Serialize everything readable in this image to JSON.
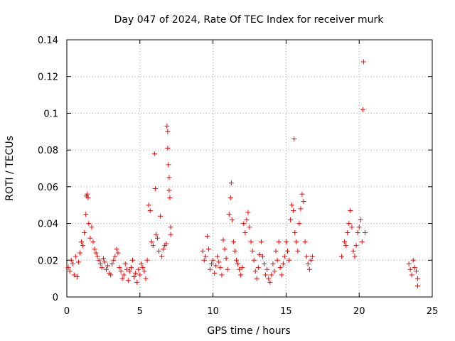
{
  "chart_data": {
    "type": "scatter",
    "title": "Day 047 of 2024, Rate Of TEC Index for receiver murk",
    "xlabel": "GPS time / hours",
    "ylabel": "ROTI / TECUs",
    "xlim": [
      0,
      25
    ],
    "ylim": [
      0,
      0.14
    ],
    "x_ticks": [
      "0",
      "5",
      "10",
      "15",
      "20",
      "25"
    ],
    "y_ticks": [
      "0",
      "0.02",
      "0.04",
      "0.06",
      "0.08",
      "0.1",
      "0.12",
      "0.14"
    ],
    "grid": true,
    "marker": "+",
    "color": "#ff0000",
    "series": [
      {
        "points": [
          [
            0.1,
            0.016
          ],
          [
            0.2,
            0.014
          ],
          [
            0.3,
            0.02
          ],
          [
            0.4,
            0.018
          ],
          [
            0.5,
            0.012
          ],
          [
            0.6,
            0.022
          ],
          [
            0.7,
            0.011
          ],
          [
            0.8,
            0.019
          ],
          [
            0.9,
            0.024
          ],
          [
            1.0,
            0.03
          ],
          [
            1.1,
            0.028
          ],
          [
            1.2,
            0.035
          ],
          [
            1.3,
            0.045
          ],
          [
            1.35,
            0.055
          ],
          [
            1.4,
            0.056
          ],
          [
            1.45,
            0.054
          ],
          [
            1.5,
            0.04
          ],
          [
            1.6,
            0.032
          ],
          [
            1.7,
            0.038
          ],
          [
            1.8,
            0.03
          ],
          [
            1.9,
            0.026
          ],
          [
            2.0,
            0.024
          ],
          [
            2.1,
            0.022
          ],
          [
            2.2,
            0.02
          ],
          [
            2.3,
            0.018
          ],
          [
            2.4,
            0.016
          ],
          [
            2.5,
            0.021
          ],
          [
            2.6,
            0.019
          ],
          [
            2.7,
            0.015
          ],
          [
            2.8,
            0.017
          ],
          [
            2.9,
            0.013
          ],
          [
            3.0,
            0.012
          ],
          [
            3.1,
            0.018
          ],
          [
            3.2,
            0.02
          ],
          [
            3.3,
            0.022
          ],
          [
            3.4,
            0.026
          ],
          [
            3.5,
            0.024
          ],
          [
            3.6,
            0.016
          ],
          [
            3.7,
            0.014
          ],
          [
            3.8,
            0.01
          ],
          [
            3.9,
            0.012
          ],
          [
            4.0,
            0.018
          ],
          [
            4.1,
            0.015
          ],
          [
            4.2,
            0.009
          ],
          [
            4.3,
            0.014
          ],
          [
            4.4,
            0.016
          ],
          [
            4.5,
            0.02
          ],
          [
            4.6,
            0.011
          ],
          [
            4.7,
            0.013
          ],
          [
            4.8,
            0.008
          ],
          [
            4.9,
            0.015
          ],
          [
            5.0,
            0.012
          ],
          [
            5.1,
            0.018
          ],
          [
            5.2,
            0.016
          ],
          [
            5.3,
            0.014
          ],
          [
            5.4,
            0.01
          ],
          [
            5.5,
            0.02
          ],
          [
            5.6,
            0.05
          ],
          [
            5.7,
            0.047
          ],
          [
            5.8,
            0.03
          ],
          [
            5.9,
            0.028
          ],
          [
            6.0,
            0.078
          ],
          [
            6.05,
            0.059
          ],
          [
            6.1,
            0.034
          ],
          [
            6.2,
            0.032
          ],
          [
            6.3,
            0.025
          ],
          [
            6.4,
            0.044
          ],
          [
            6.5,
            0.022
          ],
          [
            6.6,
            0.026
          ],
          [
            6.7,
            0.028
          ],
          [
            6.8,
            0.029
          ],
          [
            6.85,
            0.093
          ],
          [
            6.9,
            0.09
          ],
          [
            6.9,
            0.081
          ],
          [
            6.95,
            0.072
          ],
          [
            7.0,
            0.065
          ],
          [
            7.0,
            0.058
          ],
          [
            7.05,
            0.054
          ],
          [
            7.1,
            0.034
          ],
          [
            7.1,
            0.038
          ],
          [
            9.3,
            0.025
          ],
          [
            9.4,
            0.02
          ],
          [
            9.5,
            0.022
          ],
          [
            9.6,
            0.033
          ],
          [
            9.7,
            0.026
          ],
          [
            9.8,
            0.015
          ],
          [
            9.9,
            0.018
          ],
          [
            10.0,
            0.02
          ],
          [
            10.1,
            0.013
          ],
          [
            10.2,
            0.017
          ],
          [
            10.3,
            0.022
          ],
          [
            10.4,
            0.019
          ],
          [
            10.5,
            0.016
          ],
          [
            10.6,
            0.012
          ],
          [
            10.7,
            0.031
          ],
          [
            10.8,
            0.026
          ],
          [
            10.9,
            0.021
          ],
          [
            11.0,
            0.015
          ],
          [
            11.1,
            0.045
          ],
          [
            11.2,
            0.054
          ],
          [
            11.25,
            0.062
          ],
          [
            11.3,
            0.042
          ],
          [
            11.4,
            0.03
          ],
          [
            11.5,
            0.025
          ],
          [
            11.6,
            0.02
          ],
          [
            11.7,
            0.018
          ],
          [
            11.8,
            0.015
          ],
          [
            11.9,
            0.012
          ],
          [
            12.0,
            0.016
          ],
          [
            12.1,
            0.04
          ],
          [
            12.2,
            0.035
          ],
          [
            12.3,
            0.042
          ],
          [
            12.4,
            0.046
          ],
          [
            12.5,
            0.038
          ],
          [
            12.6,
            0.03
          ],
          [
            12.7,
            0.025
          ],
          [
            12.8,
            0.02
          ],
          [
            12.9,
            0.014
          ],
          [
            13.0,
            0.01
          ],
          [
            13.1,
            0.016
          ],
          [
            13.2,
            0.023
          ],
          [
            13.3,
            0.03
          ],
          [
            13.4,
            0.022
          ],
          [
            13.5,
            0.018
          ],
          [
            13.6,
            0.012
          ],
          [
            13.7,
            0.015
          ],
          [
            13.8,
            0.01
          ],
          [
            13.9,
            0.008
          ],
          [
            14.0,
            0.012
          ],
          [
            14.1,
            0.018
          ],
          [
            14.2,
            0.014
          ],
          [
            14.3,
            0.025
          ],
          [
            14.4,
            0.02
          ],
          [
            14.5,
            0.03
          ],
          [
            14.6,
            0.016
          ],
          [
            14.7,
            0.012
          ],
          [
            14.8,
            0.018
          ],
          [
            14.9,
            0.022
          ],
          [
            15.0,
            0.03
          ],
          [
            15.1,
            0.025
          ],
          [
            15.2,
            0.02
          ],
          [
            15.3,
            0.042
          ],
          [
            15.4,
            0.05
          ],
          [
            15.5,
            0.047
          ],
          [
            15.55,
            0.086
          ],
          [
            15.6,
            0.035
          ],
          [
            15.7,
            0.03
          ],
          [
            15.8,
            0.025
          ],
          [
            15.9,
            0.04
          ],
          [
            16.0,
            0.048
          ],
          [
            16.1,
            0.056
          ],
          [
            16.2,
            0.052
          ],
          [
            16.3,
            0.03
          ],
          [
            16.4,
            0.022
          ],
          [
            16.5,
            0.018
          ],
          [
            16.6,
            0.015
          ],
          [
            16.7,
            0.02
          ],
          [
            16.8,
            0.022
          ],
          [
            18.8,
            0.022
          ],
          [
            19.0,
            0.03
          ],
          [
            19.1,
            0.028
          ],
          [
            19.2,
            0.035
          ],
          [
            19.3,
            0.04
          ],
          [
            19.4,
            0.047
          ],
          [
            19.5,
            0.038
          ],
          [
            19.6,
            0.025
          ],
          [
            19.7,
            0.022
          ],
          [
            19.8,
            0.028
          ],
          [
            19.9,
            0.035
          ],
          [
            20.0,
            0.038
          ],
          [
            20.1,
            0.042
          ],
          [
            20.2,
            0.03
          ],
          [
            20.25,
            0.102
          ],
          [
            20.3,
            0.128
          ],
          [
            20.4,
            0.035
          ],
          [
            23.4,
            0.018
          ],
          [
            23.5,
            0.015
          ],
          [
            23.6,
            0.012
          ],
          [
            23.7,
            0.02
          ],
          [
            23.8,
            0.016
          ],
          [
            23.9,
            0.014
          ],
          [
            24.0,
            0.01
          ],
          [
            24.0,
            0.006
          ]
        ]
      }
    ]
  }
}
